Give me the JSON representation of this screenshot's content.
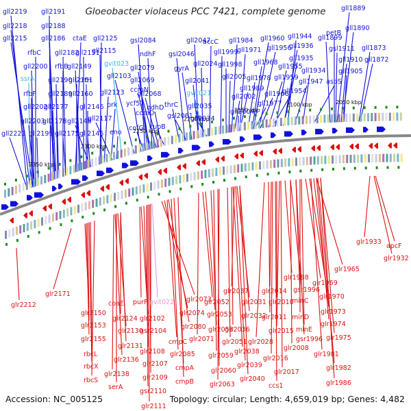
{
  "header": {
    "title": "Gloeobacter violaceus PCC 7421, complete genome"
  },
  "footer": {
    "accession": "Accession: NC_005125",
    "summary": "Topology: circular; Length: 4,659,019 bp; Genes: 4,482"
  },
  "colors": {
    "forward": "#1010dd",
    "reverse": "#dd1010",
    "rna_forward": "#39b8e6",
    "rna_reverse": "#e39ad8",
    "backbone": "#888888",
    "cog_green": "#1f8c1f"
  },
  "ticks": [
    {
      "label": "2350 kbp"
    },
    {
      "label": "2300 kbp"
    },
    {
      "label": "2250 kbp"
    },
    {
      "label": "2200 kbp"
    },
    {
      "label": "2150 kbp"
    },
    {
      "label": "2100 kbp"
    },
    {
      "label": "2050 kbp"
    }
  ],
  "forward_genes": [
    "gll2219",
    "gll2218",
    "gll2215",
    "gll2191",
    "gll2188",
    "gll2186",
    "ctaE",
    "rfbC",
    "gll2182",
    "gll2200",
    "rfbB",
    "gll2151",
    "gll2149",
    "gll2125",
    "gll2115",
    "gll2161",
    "ssrA",
    "gll2190",
    "rfbF",
    "gll2189",
    "gll2160",
    "crtH",
    "gll2123",
    "gll2202",
    "gll2177",
    "gll2146",
    "prk",
    "gll2203",
    "gll2178",
    "gll2148",
    "gll2117",
    "gll2223",
    "gll2199",
    "gll2175",
    "gll2145",
    "eno",
    "gvit023",
    "gsl2084",
    "ndhF",
    "gll2103",
    "gll2079",
    "ccmN",
    "ycf57",
    "gll2069",
    "gll2068",
    "ndhD",
    "ccmO",
    "cofG",
    "cupB",
    "gll2047",
    "gsl2046",
    "accC",
    "gll2024",
    "gll1999",
    "gll1984",
    "gll1960",
    "gll1944",
    "gll1971",
    "gll1956",
    "gll1936",
    "gyrA",
    "gll2041",
    "gvit021",
    "gll2035",
    "thrC",
    "gsl2061",
    "gll2034",
    "gll1998",
    "gll2005",
    "gll1978",
    "gll1968",
    "gll1959",
    "gll1955",
    "gll1935",
    "gll1989",
    "gll2002",
    "gll2004",
    "gll1966",
    "gll1954",
    "gll1977",
    "gll1947",
    "gll1934",
    "aspS",
    "gll1889",
    "gll1890",
    "petB",
    "gll1899",
    "gsl1911",
    "gll1910",
    "gll1873",
    "gll1905",
    "gll1872"
  ],
  "reverse_genes": [
    "glr2212",
    "glr2171",
    "glr2150",
    "coaE",
    "purF",
    "gvit022",
    "glr2124",
    "glr2153",
    "glr2130",
    "glr2155",
    "glr2131",
    "rbcL",
    "glr2136",
    "rbcX",
    "glr2138",
    "rbcS",
    "serA",
    "glr2102",
    "gsr2104",
    "glr2108",
    "glr2107",
    "glr2109",
    "gsr2110",
    "glr2111",
    "glr2073",
    "glr2074",
    "glr2080",
    "cmpC",
    "glr2085",
    "cmpA",
    "cmpB",
    "glr2052",
    "glr2053",
    "glr2071",
    "glr2058",
    "glr2059",
    "glr2060",
    "glr2063",
    "glr2037",
    "glr2031",
    "glr2032",
    "glr2036",
    "glr2051",
    "glr2038",
    "glr2039",
    "glr2040",
    "glr2014",
    "glr2010",
    "glr2011",
    "glr2015",
    "glr2028",
    "glr2016",
    "glr2017",
    "ccs1",
    "glr1988",
    "gsr1996",
    "minC",
    "minD",
    "minE",
    "glr2008",
    "gsr1996",
    "glr1969",
    "glr1970",
    "glr1973",
    "glr1974",
    "glr1975",
    "glr1981",
    "glr1982",
    "glr1986",
    "glr1965",
    "glr1933",
    "apcF",
    "glr1932"
  ]
}
